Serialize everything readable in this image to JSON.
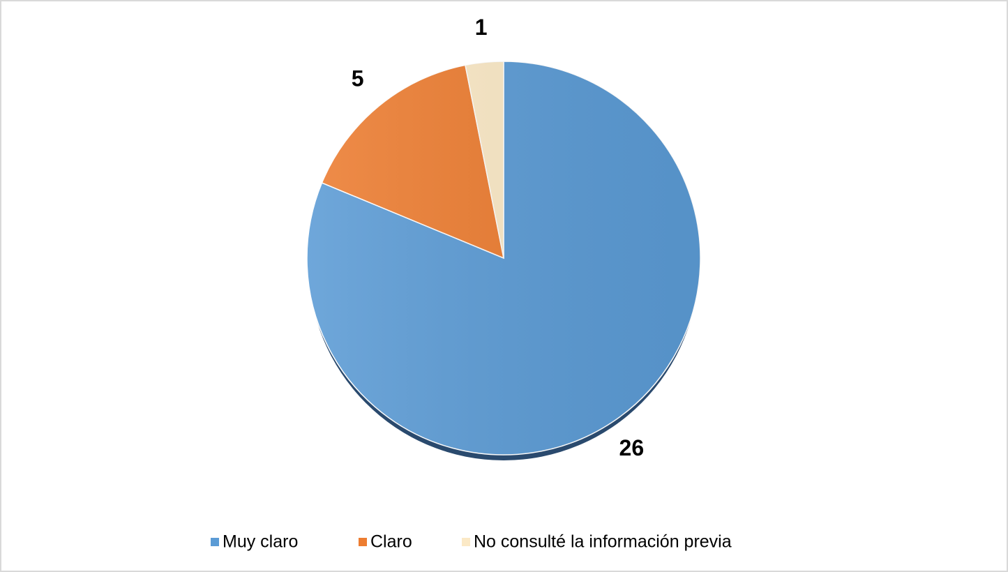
{
  "chart_data": {
    "type": "pie",
    "categories": [
      "Muy claro",
      "Claro",
      "No consulté la información previa"
    ],
    "values": [
      26,
      5,
      1
    ],
    "colors": [
      "#5b9bd5",
      "#ed7d31",
      "#fbe9c6"
    ],
    "legend": "bottom"
  }
}
